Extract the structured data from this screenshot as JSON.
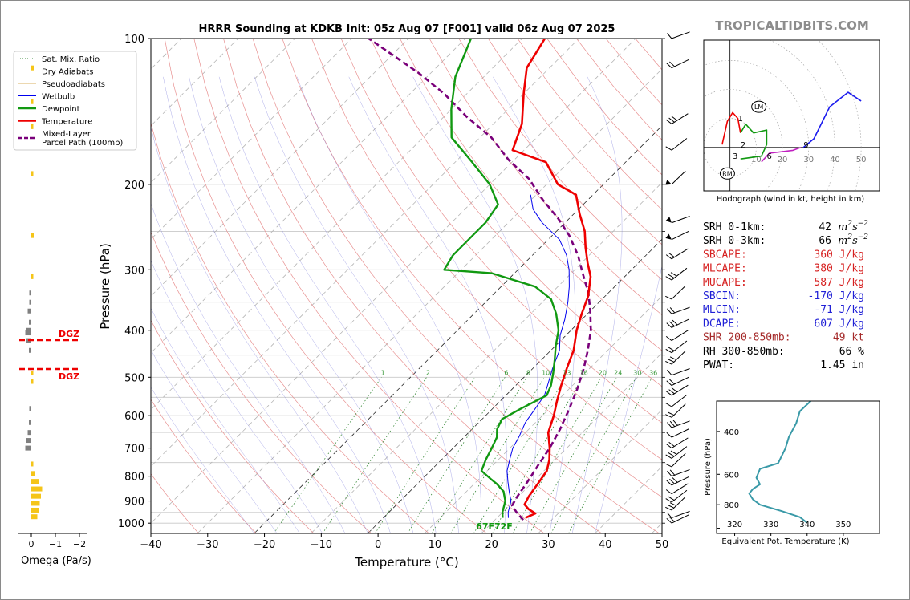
{
  "title": "HRRR Sounding at KDKB Init: 05z Aug 07 [F001] valid 06z Aug 07 2025",
  "watermark": "TROPICALTIDBITS.COM",
  "legend": [
    {
      "label": "Sat. Mix. Ratio",
      "color": "#3a8a3a",
      "style": "dotted"
    },
    {
      "label": "Dry Adiabats",
      "color": "#e89090",
      "style": "solid"
    },
    {
      "label": "Pseudoadiabats",
      "color": "#d8b060",
      "style": "solid"
    },
    {
      "label": "Wetbulb",
      "color": "#0000ee",
      "style": "solid"
    },
    {
      "label": "Dewpoint",
      "color": "#119911",
      "style": "thick"
    },
    {
      "label": "Temperature",
      "color": "#ee0000",
      "style": "thick"
    },
    {
      "label": "Mixed-Layer\nParcel Path (100mb)",
      "color": "#7a007a",
      "style": "dashed"
    }
  ],
  "skewt": {
    "xlabel": "Temperature (°C)",
    "ylabel": "Pressure (hPa)",
    "xticks": [
      -40,
      -30,
      -20,
      -10,
      0,
      10,
      20,
      30,
      40,
      50
    ],
    "yticks": [
      100,
      200,
      300,
      400,
      500,
      600,
      700,
      800,
      900,
      1000
    ],
    "mix_ratio_labels": [
      "1",
      "2",
      "6",
      "8",
      "10",
      "13",
      "16",
      "20",
      "24",
      "30",
      "36"
    ],
    "surface_label": "67F72F"
  },
  "omega": {
    "xlabel": "Omega (Pa/s)",
    "xticks": [
      "0",
      "−1",
      "−2"
    ],
    "dgz_label": "DGZ"
  },
  "hodograph": {
    "caption": "Hodograph (wind in kt, height in km)",
    "ticks": [
      "10",
      "20",
      "30",
      "40",
      "50"
    ],
    "height_labels": [
      "1",
      "2",
      "3",
      "6",
      "9"
    ],
    "lm_label": "LM",
    "rm_label": "RM"
  },
  "indices": [
    {
      "label": "SRH 0-1km:",
      "value": "42",
      "unit_sup": true,
      "color": "#000000"
    },
    {
      "label": "SRH 0-3km:",
      "value": "66",
      "unit_sup": true,
      "color": "#000000"
    },
    {
      "label": "SBCAPE:",
      "value": "360 J/kg",
      "color": "#d62020"
    },
    {
      "label": "MLCAPE:",
      "value": "380 J/kg",
      "color": "#d62020"
    },
    {
      "label": "MUCAPE:",
      "value": "587 J/kg",
      "color": "#d62020"
    },
    {
      "label": "SBCIN:",
      "value": "-170 J/kg",
      "color": "#2020d6"
    },
    {
      "label": "MLCIN:",
      "value": "-71 J/kg",
      "color": "#2020d6"
    },
    {
      "label": "DCAPE:",
      "value": "607 J/kg",
      "color": "#2020d6"
    },
    {
      "label": "SHR 200-850mb:",
      "value": "49 kt",
      "color": "#a52a2a"
    },
    {
      "label": "RH 300-850mb:",
      "value": "66 %",
      "color": "#000000"
    },
    {
      "label": "PWAT:",
      "value": "1.45 in",
      "color": "#000000"
    }
  ],
  "theta_e": {
    "xlabel": "Equivalent Pot. Temperature (K)",
    "ylabel": "Pressure (hPa)",
    "xticks": [
      "320",
      "330",
      "340",
      "350"
    ],
    "yticks": [
      "400",
      "600",
      "800"
    ]
  },
  "chart_data": [
    {
      "type": "line",
      "title": "HRRR Sounding at KDKB Init: 05z Aug 07 [F001] valid 06z Aug 07 2025",
      "xlabel": "Temperature (°C)",
      "ylabel": "Pressure (hPa)",
      "xlim": [
        -40,
        50
      ],
      "ylim": [
        1050,
        100
      ],
      "yscale": "log",
      "skew": "skew-T log-p",
      "grid": true,
      "legend_position": "top-left",
      "series": [
        {
          "name": "Temperature",
          "color": "#ee0000",
          "points": [
            [
              25,
              975
            ],
            [
              26,
              955
            ],
            [
              24,
              935
            ],
            [
              22.5,
              915
            ],
            [
              21.8,
              880
            ],
            [
              21.2,
              830
            ],
            [
              20.5,
              780
            ],
            [
              19,
              740
            ],
            [
              17,
              700
            ],
            [
              14,
              650
            ],
            [
              12,
              600
            ],
            [
              10,
              560
            ],
            [
              8,
              520
            ],
            [
              6,
              480
            ],
            [
              4,
              440
            ],
            [
              1,
              400
            ],
            [
              -1,
              370
            ],
            [
              -3,
              340
            ],
            [
              -6,
              310
            ],
            [
              -9,
              290
            ],
            [
              -12,
              270
            ],
            [
              -15,
              250
            ],
            [
              -19,
              230
            ],
            [
              -23,
              210
            ],
            [
              -28,
              200
            ],
            [
              -34,
              180
            ],
            [
              -42,
              170
            ],
            [
              -45,
              150
            ],
            [
              -50,
              130
            ],
            [
              -54,
              115
            ],
            [
              -56,
              100
            ]
          ]
        },
        {
          "name": "Dewpoint",
          "color": "#119911",
          "points": [
            [
              21,
              975
            ],
            [
              20,
              950
            ],
            [
              18.5,
              900
            ],
            [
              16.5,
              860
            ],
            [
              14,
              830
            ],
            [
              12,
              810
            ],
            [
              9,
              780
            ],
            [
              7.8,
              740
            ],
            [
              6.8,
              700
            ],
            [
              5.8,
              665
            ],
            [
              4.4,
              640
            ],
            [
              3.5,
              610
            ],
            [
              5,
              580
            ],
            [
              7.2,
              545
            ],
            [
              6.2,
              520
            ],
            [
              4.4,
              490
            ],
            [
              2.3,
              460
            ],
            [
              0,
              430
            ],
            [
              -2.2,
              400
            ],
            [
              -5.5,
              370
            ],
            [
              -9,
              345
            ],
            [
              -14,
              325
            ],
            [
              -24,
              305
            ],
            [
              -33,
              300
            ],
            [
              -34,
              280
            ],
            [
              -34,
              260
            ],
            [
              -34,
              240
            ],
            [
              -35,
              220
            ],
            [
              -40,
              200
            ],
            [
              -47,
              180
            ],
            [
              -55,
              160
            ],
            [
              -60,
              140
            ],
            [
              -65,
              120
            ],
            [
              -69,
              100
            ]
          ]
        },
        {
          "name": "Wetbulb",
          "color": "#0000ee",
          "points": [
            [
              22,
              975
            ],
            [
              21,
              950
            ],
            [
              19.5,
              900
            ],
            [
              17.5,
              860
            ],
            [
              15.5,
              820
            ],
            [
              13.5,
              780
            ],
            [
              12,
              740
            ],
            [
              10.5,
              700
            ],
            [
              9.5,
              660
            ],
            [
              8.2,
              620
            ],
            [
              7.5,
              580
            ],
            [
              6.8,
              545
            ],
            [
              5.6,
              520
            ],
            [
              3.5,
              480
            ],
            [
              1.5,
              440
            ],
            [
              -1,
              410
            ],
            [
              -3,
              380
            ],
            [
              -5.5,
              350
            ],
            [
              -8,
              325
            ],
            [
              -11,
              300
            ],
            [
              -14,
              280
            ],
            [
              -18,
              260
            ],
            [
              -24,
              240
            ],
            [
              -28,
              225
            ],
            [
              -31,
              210
            ]
          ]
        },
        {
          "name": "Mixed-Layer Parcel Path (100mb)",
          "color": "#7a007a",
          "points": [
            [
              25,
              985
            ],
            [
              22.5,
              950
            ],
            [
              20.5,
              920
            ],
            [
              19.8,
              880
            ],
            [
              19,
              820
            ],
            [
              18,
              760
            ],
            [
              17,
              700
            ],
            [
              15.5,
              640
            ],
            [
              13.5,
              580
            ],
            [
              11.5,
              530
            ],
            [
              9,
              480
            ],
            [
              6.5,
              440
            ],
            [
              3.5,
              400
            ],
            [
              0,
              365
            ],
            [
              -3.5,
              335
            ],
            [
              -8,
              305
            ],
            [
              -12,
              280
            ],
            [
              -17,
              255
            ],
            [
              -22,
              235
            ],
            [
              -28,
              215
            ],
            [
              -34,
              195
            ],
            [
              -41,
              178
            ],
            [
              -48,
              160
            ],
            [
              -56,
              145
            ],
            [
              -64,
              130
            ],
            [
              -72,
              118
            ],
            [
              -80,
              108
            ],
            [
              -87,
              100
            ]
          ]
        }
      ]
    },
    {
      "type": "bar",
      "title": "",
      "xlabel": "Omega (Pa/s)",
      "orientation": "horizontal",
      "ylim": [
        1050,
        100
      ],
      "xlim": [
        0.2,
        -2.2
      ],
      "series": [
        {
          "name": "",
          "values": [
            [
              0.1,
              115
            ],
            [
              0.05,
              135
            ],
            [
              0.05,
              152
            ],
            [
              0.0,
              190
            ],
            [
              0.1,
              255
            ],
            [
              0.05,
              310
            ],
            [
              -0.05,
              335
            ],
            [
              -0.05,
              350
            ],
            [
              -0.15,
              365
            ],
            [
              -0.1,
              385
            ],
            [
              -0.2,
              400
            ],
            [
              -0.25,
              405
            ],
            [
              -0.2,
              420
            ],
            [
              -0.1,
              440
            ],
            [
              0.05,
              490
            ],
            [
              0.05,
              510
            ],
            [
              -0.05,
              580
            ],
            [
              -0.1,
              620
            ],
            [
              -0.15,
              650
            ],
            [
              -0.2,
              675
            ],
            [
              -0.25,
              700
            ],
            [
              0.05,
              755
            ],
            [
              0.15,
              790
            ],
            [
              0.3,
              820
            ],
            [
              0.45,
              850
            ],
            [
              0.4,
              880
            ],
            [
              0.35,
              910
            ],
            [
              0.3,
              940
            ],
            [
              0.25,
              970
            ]
          ]
        }
      ],
      "annotations": [
        "DGZ",
        "DGZ"
      ]
    },
    {
      "type": "line",
      "title": "",
      "xlabel": "",
      "caption": "Hodograph (wind in kt, height in km)",
      "xlim": [
        -10,
        57
      ],
      "ylim": [
        -15,
        37
      ],
      "rings": [
        10,
        20,
        30,
        40,
        50
      ],
      "series": [
        {
          "name": "0-1 km",
          "color": "#ee0000",
          "points": [
            [
              -3,
              1
            ],
            [
              -1,
              9
            ],
            [
              1,
              12
            ],
            [
              3,
              10
            ],
            [
              4,
              5
            ]
          ]
        },
        {
          "name": "1-3 km",
          "color": "#119911",
          "points": [
            [
              4,
              5
            ],
            [
              6,
              8
            ],
            [
              9,
              5
            ],
            [
              14,
              6
            ],
            [
              14,
              1
            ],
            [
              12,
              -3
            ],
            [
              4,
              -4
            ]
          ]
        },
        {
          "name": "3-6 km",
          "color": "#c020c0",
          "points": [
            [
              12,
              -5
            ],
            [
              15,
              -2
            ],
            [
              24,
              -1
            ],
            [
              27,
              0
            ]
          ]
        },
        {
          "name": "6-9 km",
          "color": "#1a1aee",
          "points": [
            [
              28,
              0
            ],
            [
              32,
              3
            ],
            [
              38,
              14
            ],
            [
              45,
              19
            ],
            [
              50,
              16
            ]
          ]
        }
      ],
      "labels": [
        "1",
        "2",
        "3",
        "6",
        "9",
        "LM",
        "RM"
      ]
    },
    {
      "type": "line",
      "title": "",
      "xlabel": "Equivalent Pot. Temperature (K)",
      "ylabel": "Pressure (hPa)",
      "xlim": [
        315,
        360
      ],
      "ylim": [
        1050,
        300
      ],
      "series": [
        {
          "name": "",
          "color": "#3a9aa8",
          "points": [
            [
              341,
              300
            ],
            [
              338,
              330
            ],
            [
              337,
              370
            ],
            [
              335,
              420
            ],
            [
              334,
              470
            ],
            [
              332,
              540
            ],
            [
              327,
              570
            ],
            [
              326,
              620
            ],
            [
              327,
              660
            ],
            [
              325,
              690
            ],
            [
              324,
              720
            ],
            [
              325,
              760
            ],
            [
              327,
              800
            ],
            [
              333,
              850
            ],
            [
              338,
              900
            ],
            [
              340,
              950
            ]
          ]
        }
      ]
    }
  ]
}
